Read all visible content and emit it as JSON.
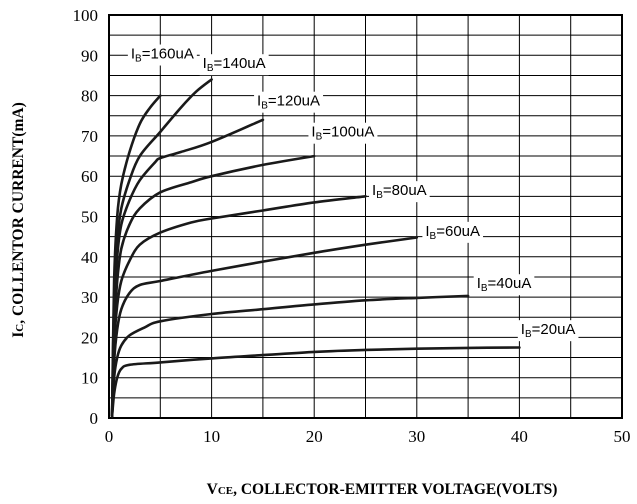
{
  "chart_data": {
    "type": "line",
    "title": "",
    "xlabel_prefix": "V",
    "xlabel_sub": "CE",
    "xlabel_rest": ", COLLECTOR-EMITTER VOLTAGE(VOLTS)",
    "ylabel_prefix": "I",
    "ylabel_sub": "C",
    "ylabel_rest": ", COLLENTOR CURRENT(mA)",
    "xlim": [
      0,
      50
    ],
    "ylim": [
      0,
      100
    ],
    "x_ticks": [
      0,
      10,
      20,
      30,
      40,
      50
    ],
    "y_ticks": [
      0,
      10,
      20,
      30,
      40,
      50,
      60,
      70,
      80,
      90,
      100
    ],
    "grid": true,
    "series": [
      {
        "name": "IB=20uA",
        "label_pre": "I",
        "label_sub": "B",
        "label_post": "=20uA",
        "points": [
          [
            0.3,
            0.5
          ],
          [
            0.5,
            6
          ],
          [
            0.8,
            10
          ],
          [
            1.2,
            12.2
          ],
          [
            2,
            13.2
          ],
          [
            5,
            13.8
          ],
          [
            10,
            14.8
          ],
          [
            15,
            15.6
          ],
          [
            20,
            16.4
          ],
          [
            25,
            16.9
          ],
          [
            30,
            17.2
          ],
          [
            35,
            17.4
          ],
          [
            40,
            17.5
          ]
        ]
      },
      {
        "name": "IB=40uA",
        "label_pre": "I",
        "label_sub": "B",
        "label_post": "=40uA",
        "points": [
          [
            0.3,
            0.5
          ],
          [
            0.5,
            10
          ],
          [
            0.8,
            15
          ],
          [
            1.2,
            18
          ],
          [
            2,
            20.5
          ],
          [
            3.5,
            22.5
          ],
          [
            5,
            24
          ],
          [
            10,
            25.8
          ],
          [
            15,
            27
          ],
          [
            20,
            28.2
          ],
          [
            25,
            29.2
          ],
          [
            30,
            29.8
          ],
          [
            35,
            30.3
          ]
        ]
      },
      {
        "name": "IB=60uA",
        "label_pre": "I",
        "label_sub": "B",
        "label_post": "=60uA",
        "points": [
          [
            0.3,
            0.5
          ],
          [
            0.5,
            14
          ],
          [
            0.8,
            22
          ],
          [
            1.2,
            27
          ],
          [
            2,
            31
          ],
          [
            3,
            33
          ],
          [
            5,
            34
          ],
          [
            10,
            36.5
          ],
          [
            15,
            38.8
          ],
          [
            20,
            41
          ],
          [
            25,
            43
          ],
          [
            30,
            44.8
          ]
        ]
      },
      {
        "name": "IB=80uA",
        "label_pre": "I",
        "label_sub": "B",
        "label_post": "=80uA",
        "points": [
          [
            0.3,
            0.5
          ],
          [
            0.5,
            18
          ],
          [
            0.8,
            28
          ],
          [
            1.2,
            34
          ],
          [
            2,
            39
          ],
          [
            3,
            43
          ],
          [
            5,
            46
          ],
          [
            8,
            48.5
          ],
          [
            10,
            49.5
          ],
          [
            15,
            51.5
          ],
          [
            20,
            53.5
          ],
          [
            25,
            55
          ]
        ]
      },
      {
        "name": "IB=100uA",
        "label_pre": "I",
        "label_sub": "B",
        "label_post": "=100uA",
        "points": [
          [
            0.3,
            0.5
          ],
          [
            0.5,
            22
          ],
          [
            0.8,
            34
          ],
          [
            1.2,
            42
          ],
          [
            2,
            48
          ],
          [
            3,
            52
          ],
          [
            5,
            56
          ],
          [
            8,
            58.5
          ],
          [
            10,
            60
          ],
          [
            15,
            62.8
          ],
          [
            20,
            65
          ]
        ]
      },
      {
        "name": "IB=120uA",
        "label_pre": "I",
        "label_sub": "B",
        "label_post": "=120uA",
        "points": [
          [
            0.3,
            0.5
          ],
          [
            0.5,
            26
          ],
          [
            0.8,
            40
          ],
          [
            1.2,
            48
          ],
          [
            2,
            54
          ],
          [
            3,
            59
          ],
          [
            4.5,
            63.5
          ],
          [
            5,
            64.5
          ],
          [
            7,
            66
          ],
          [
            10,
            68.5
          ],
          [
            15,
            74
          ]
        ]
      },
      {
        "name": "IB=140uA",
        "label_pre": "I",
        "label_sub": "B",
        "label_post": "=140uA",
        "points": [
          [
            0.3,
            0.5
          ],
          [
            0.5,
            30
          ],
          [
            0.8,
            44
          ],
          [
            1.2,
            52
          ],
          [
            2,
            59
          ],
          [
            3,
            65
          ],
          [
            5,
            71
          ],
          [
            7,
            77
          ],
          [
            8.5,
            81
          ],
          [
            10,
            84
          ]
        ]
      },
      {
        "name": "IB=160uA",
        "label_pre": "I",
        "label_sub": "B",
        "label_post": "=160uA",
        "points": [
          [
            0.3,
            0.5
          ],
          [
            0.5,
            34
          ],
          [
            0.8,
            50
          ],
          [
            1.2,
            58
          ],
          [
            2,
            66
          ],
          [
            3,
            73
          ],
          [
            4,
            77
          ],
          [
            5,
            80
          ]
        ]
      }
    ]
  }
}
